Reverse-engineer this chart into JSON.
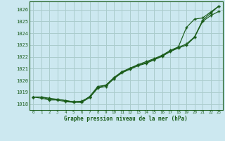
{
  "title": "Graphe pression niveau de la mer (hPa)",
  "background_color": "#cce8f0",
  "grid_color": "#aacccc",
  "line_color": "#1a5c1a",
  "xlim": [
    -0.5,
    23.5
  ],
  "ylim": [
    1017.5,
    1026.7
  ],
  "yticks": [
    1018,
    1019,
    1020,
    1021,
    1022,
    1023,
    1024,
    1025,
    1026
  ],
  "xticks": [
    0,
    1,
    2,
    3,
    4,
    5,
    6,
    7,
    8,
    9,
    10,
    11,
    12,
    13,
    14,
    15,
    16,
    17,
    18,
    19,
    20,
    21,
    22,
    23
  ],
  "series1": [
    1018.6,
    1018.6,
    1018.4,
    1018.4,
    1018.3,
    1018.2,
    1018.25,
    1018.6,
    1019.4,
    1019.6,
    1020.2,
    1020.7,
    1021.0,
    1021.3,
    1021.5,
    1021.8,
    1022.1,
    1022.5,
    1022.8,
    1023.1,
    1023.7,
    1025.1,
    1025.7,
    1026.3
  ],
  "series2": [
    1018.6,
    1018.6,
    1018.5,
    1018.4,
    1018.3,
    1018.2,
    1018.2,
    1018.65,
    1019.5,
    1019.6,
    1020.25,
    1020.75,
    1021.05,
    1021.35,
    1021.6,
    1021.85,
    1022.15,
    1022.55,
    1022.85,
    1024.5,
    1025.2,
    1025.3,
    1025.8,
    1026.3
  ],
  "series3": [
    1018.6,
    1018.5,
    1018.35,
    1018.35,
    1018.2,
    1018.15,
    1018.15,
    1018.55,
    1019.35,
    1019.5,
    1020.15,
    1020.65,
    1020.95,
    1021.25,
    1021.45,
    1021.75,
    1022.05,
    1022.45,
    1022.75,
    1023.0,
    1023.65,
    1025.0,
    1025.5,
    1025.85
  ]
}
